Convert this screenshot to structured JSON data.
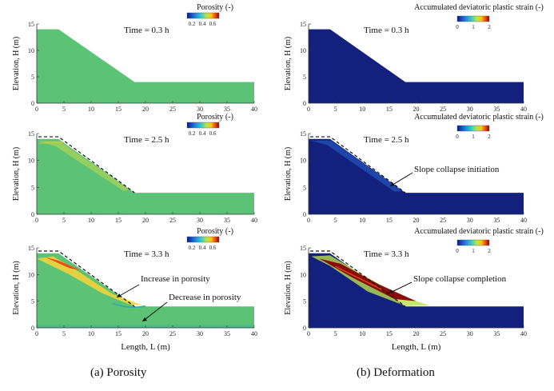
{
  "panels": [
    {
      "column": "porosity",
      "time": "Time = 0.3 h",
      "colorbar_title": "Porosity (-)",
      "colorbar_ticks": [
        "0.2",
        "0.4",
        "0.6"
      ],
      "annotations": []
    },
    {
      "column": "porosity",
      "time": "Time = 2.5 h",
      "colorbar_title": "Porosity (-)",
      "colorbar_ticks": [
        "0.2",
        "0.4",
        "0.6"
      ],
      "annotations": []
    },
    {
      "column": "porosity",
      "time": "Time = 3.3 h",
      "colorbar_title": "Porosity (-)",
      "colorbar_ticks": [
        "0.2",
        "0.4",
        "0.6"
      ],
      "annotations": [
        "Increase in porosity",
        "Decrease in porosity"
      ]
    },
    {
      "column": "deformation",
      "time": "Time = 0.3 h",
      "colorbar_title": "Accumulated deviatoric plastic strain (-)",
      "colorbar_ticks": [
        "0",
        "1",
        "2"
      ],
      "annotations": []
    },
    {
      "column": "deformation",
      "time": "Time = 2.5 h",
      "colorbar_title": "Accumulated deviatoric plastic strain (-)",
      "colorbar_ticks": [
        "0",
        "1",
        "2"
      ],
      "annotations": [
        "Slope collapse initiation"
      ]
    },
    {
      "column": "deformation",
      "time": "Time = 3.3 h",
      "colorbar_title": "Accumulated deviatoric plastic strain (-)",
      "colorbar_ticks": [
        "0",
        "1",
        "2"
      ],
      "annotations": [
        "Slope collapse completion"
      ]
    }
  ],
  "axes": {
    "xlabel": "Length, L (m)",
    "ylabel": "Elevation, H (m)",
    "x_ticks": [
      "0",
      "5",
      "10",
      "15",
      "20",
      "25",
      "30",
      "35",
      "40"
    ],
    "y_ticks": [
      "0",
      "5",
      "10",
      "15"
    ],
    "xlim": [
      0,
      40
    ],
    "ylim": [
      0,
      15
    ]
  },
  "slope_geometry": {
    "crest_x": 4,
    "toe_x": 18,
    "crest_h": 14,
    "toe_h": 4,
    "end_x": 40
  },
  "colors": {
    "porosity_base": "#5cc276",
    "strain_base": "#13207e"
  },
  "captions": [
    "(a)  Porosity",
    "(b) Deformation"
  ]
}
